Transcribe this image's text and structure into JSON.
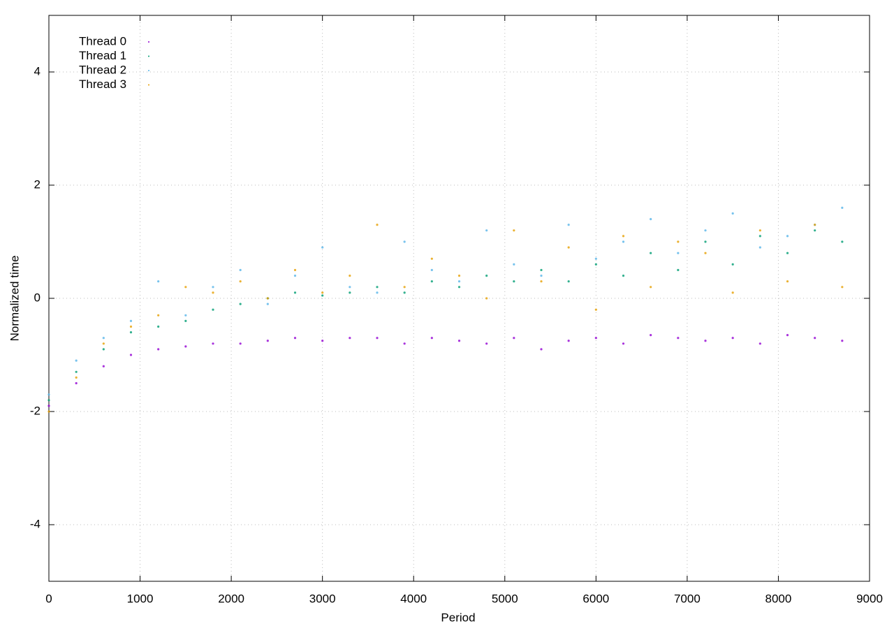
{
  "chart_data": {
    "type": "scatter",
    "xlabel": "Period",
    "ylabel": "Normalized time",
    "x": [
      0,
      300,
      600,
      900,
      1200,
      1500,
      1800,
      2100,
      2400,
      2700,
      3000,
      3300,
      3600,
      3900,
      4200,
      4500,
      4800,
      5100,
      5400,
      5700,
      6000,
      6300,
      6600,
      6900,
      7200,
      7500,
      7800,
      8100,
      8400,
      8700
    ],
    "series": [
      {
        "name": "Thread 0",
        "color": "#9400d3",
        "values": [
          -1.9,
          -1.5,
          -1.2,
          -1.0,
          -0.9,
          -0.85,
          -0.8,
          -0.8,
          -0.75,
          -0.7,
          -0.75,
          -0.7,
          -0.7,
          -0.8,
          -0.7,
          -0.75,
          -0.8,
          -0.7,
          -0.9,
          -0.75,
          -0.7,
          -0.8,
          -0.65,
          -0.7,
          -0.75,
          -0.7,
          -0.8,
          -0.65,
          -0.7,
          -0.75
        ]
      },
      {
        "name": "Thread 1",
        "color": "#009e73",
        "values": [
          -1.8,
          -1.3,
          -0.9,
          -0.6,
          -0.5,
          -0.4,
          -0.2,
          -0.1,
          0,
          0.1,
          0.05,
          0.1,
          0.2,
          0.1,
          0.3,
          0.2,
          0.4,
          0.3,
          0.5,
          0.3,
          0.6,
          0.4,
          0.8,
          0.5,
          1.0,
          0.6,
          1.1,
          0.8,
          1.2,
          1.0
        ]
      },
      {
        "name": "Thread 2",
        "color": "#56b4e9",
        "values": [
          -1.7,
          -1.1,
          -0.7,
          -0.4,
          0.3,
          -0.3,
          0.2,
          0.5,
          -0.1,
          0.4,
          0.9,
          0.2,
          0.1,
          1.0,
          0.5,
          0.3,
          1.2,
          0.6,
          0.4,
          1.3,
          0.7,
          1.0,
          1.4,
          0.8,
          1.2,
          1.5,
          0.9,
          1.1,
          1.3,
          1.6
        ]
      },
      {
        "name": "Thread 3",
        "color": "#e69f00",
        "values": [
          -2.0,
          -1.4,
          -0.8,
          -0.5,
          -0.3,
          0.2,
          0.1,
          0.3,
          0,
          0.5,
          0.1,
          0.4,
          1.3,
          0.2,
          0.7,
          0.4,
          0,
          1.2,
          0.3,
          0.9,
          -0.2,
          1.1,
          0.2,
          1.0,
          0.8,
          0.1,
          1.2,
          0.3,
          1.3,
          0.2
        ]
      }
    ],
    "xlim": [
      0,
      9000
    ],
    "xticks": [
      0,
      1000,
      2000,
      3000,
      4000,
      5000,
      6000,
      7000,
      8000,
      9000
    ],
    "ylim": [
      -5,
      5
    ],
    "yticks": [
      -4,
      -2,
      0,
      2,
      4
    ],
    "grid": true,
    "legend": "top-left"
  }
}
